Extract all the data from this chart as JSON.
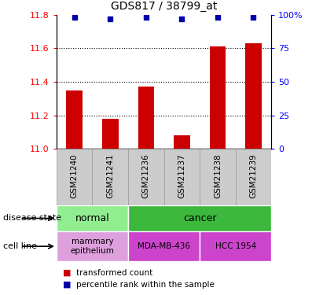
{
  "title": "GDS817 / 38799_at",
  "samples": [
    "GSM21240",
    "GSM21241",
    "GSM21236",
    "GSM21237",
    "GSM21238",
    "GSM21239"
  ],
  "bar_values": [
    11.35,
    11.18,
    11.37,
    11.08,
    11.61,
    11.63
  ],
  "percentile_values": [
    98,
    97,
    98,
    97,
    98,
    98
  ],
  "ylim_left": [
    11.0,
    11.8
  ],
  "ylim_right": [
    0,
    100
  ],
  "yticks_left": [
    11.0,
    11.2,
    11.4,
    11.6,
    11.8
  ],
  "yticks_right": [
    0,
    25,
    50,
    75,
    100
  ],
  "right_tick_labels": [
    "0",
    "25",
    "50",
    "75",
    "100%"
  ],
  "bar_color": "#cc0000",
  "percentile_color": "#0000aa",
  "grid_lines": [
    11.2,
    11.4,
    11.6
  ],
  "normal_color": "#90EE90",
  "cancer_color": "#3CB83C",
  "mammary_color": "#DDA0DD",
  "mda_color": "#CC44CC",
  "hcc_color": "#CC44CC",
  "label_box_color": "#CCCCCC",
  "label_box_edge": "#999999"
}
